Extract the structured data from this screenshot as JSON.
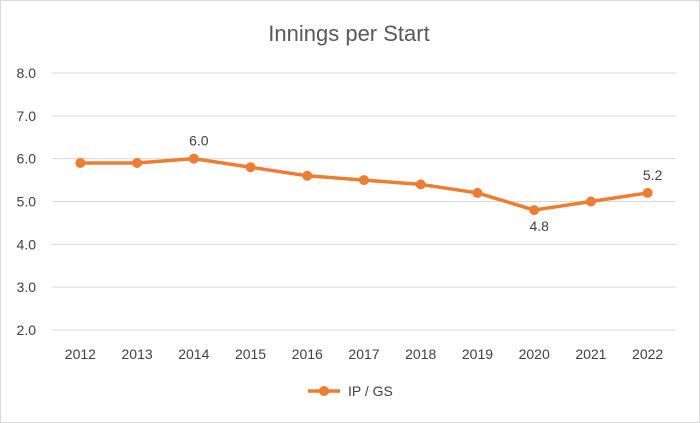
{
  "chart_data": {
    "type": "line",
    "title": "Innings per Start",
    "xlabel": "",
    "ylabel": "",
    "categories": [
      "2012",
      "2013",
      "2014",
      "2015",
      "2016",
      "2017",
      "2018",
      "2019",
      "2020",
      "2021",
      "2022"
    ],
    "series": [
      {
        "name": "IP / GS",
        "values": [
          5.9,
          5.9,
          6.0,
          5.8,
          5.6,
          5.5,
          5.4,
          5.2,
          4.8,
          5.0,
          5.2
        ],
        "color": "#ed7d31"
      }
    ],
    "ylim": [
      2.0,
      8.0
    ],
    "yticks": [
      "2.0",
      "3.0",
      "4.0",
      "5.0",
      "6.0",
      "7.0",
      "8.0"
    ],
    "data_labels": [
      {
        "index": 2,
        "text": "6.0",
        "position": "above"
      },
      {
        "index": 8,
        "text": "4.8",
        "position": "below"
      },
      {
        "index": 10,
        "text": "5.2",
        "position": "above"
      }
    ],
    "grid": true,
    "legend": "bottom"
  }
}
